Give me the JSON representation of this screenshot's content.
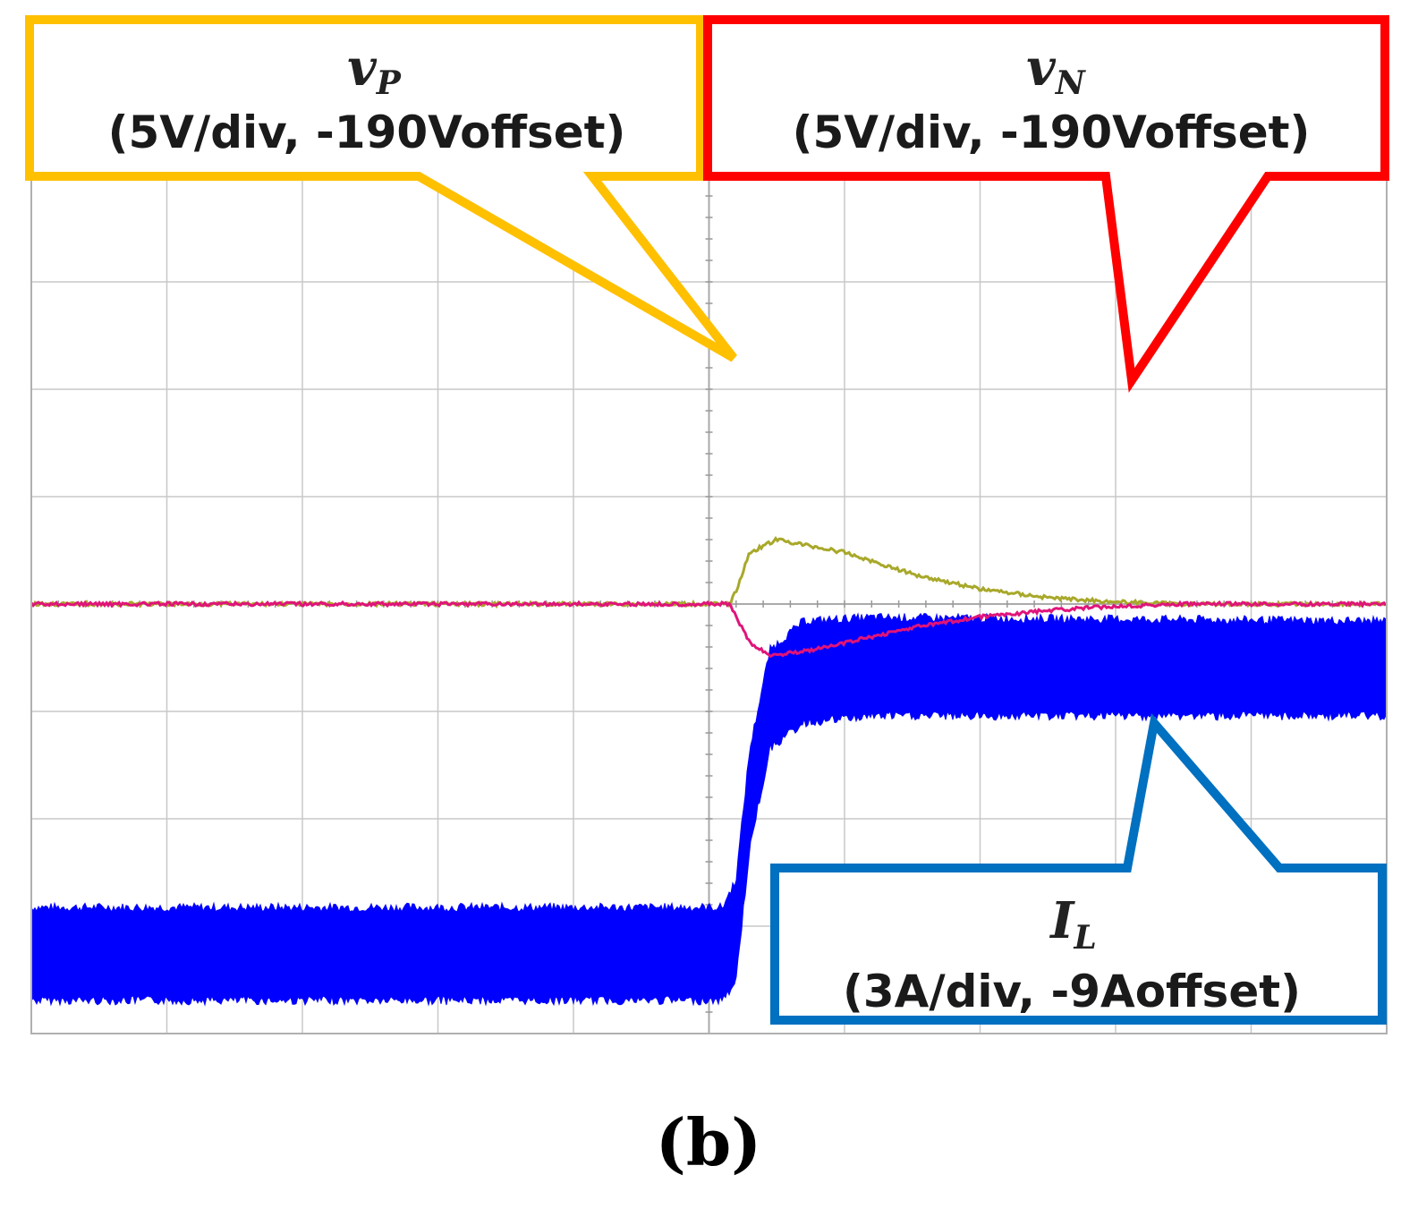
{
  "panel_label": "(b)",
  "callouts": {
    "vp": {
      "symbol": "v",
      "subscript": "P",
      "scale_text": "(5V/div, -190Voffset)",
      "color": "#FFC000"
    },
    "vn": {
      "symbol": "v",
      "subscript": "N",
      "scale_text": "(5V/div, -190Voffset)",
      "color": "#FF0000"
    },
    "il": {
      "symbol": "I",
      "subscript": "L",
      "scale_text": "(3A/div, -9Aoffset)",
      "color": "#0070C0"
    }
  },
  "chart_data": {
    "type": "line",
    "title": "",
    "xlabel": "",
    "ylabel": "",
    "grid": true,
    "x_divisions": 10,
    "y_divisions": 8,
    "grid_color": "#c8c8c8",
    "background": "#ffffff",
    "series": [
      {
        "name": "vP",
        "color": "#A8A82A",
        "units": "V",
        "volts_per_div": 5,
        "offset": -190,
        "points": [
          [
            0.0,
            190.0
          ],
          [
            5.15,
            190.0
          ],
          [
            5.2,
            190.6
          ],
          [
            5.3,
            192.4
          ],
          [
            5.5,
            193.0
          ],
          [
            6.0,
            192.4
          ],
          [
            6.5,
            191.4
          ],
          [
            7.0,
            190.7
          ],
          [
            7.5,
            190.3
          ],
          [
            8.0,
            190.1
          ],
          [
            8.5,
            190.0
          ],
          [
            10.0,
            190.0
          ]
        ]
      },
      {
        "name": "vN",
        "color": "#E0147A",
        "units": "V",
        "volts_per_div": 5,
        "offset": -190,
        "points": [
          [
            0.0,
            190.0
          ],
          [
            5.15,
            190.0
          ],
          [
            5.3,
            188.2
          ],
          [
            5.45,
            187.6
          ],
          [
            5.8,
            187.9
          ],
          [
            6.5,
            188.9
          ],
          [
            7.0,
            189.4
          ],
          [
            7.5,
            189.7
          ],
          [
            8.0,
            189.9
          ],
          [
            8.5,
            190.0
          ],
          [
            10.0,
            190.0
          ]
        ]
      },
      {
        "name": "IL",
        "color": "#0000FF",
        "units": "A",
        "amps_per_div": 3,
        "offset": -9,
        "band": true,
        "points": [
          [
            0.0,
            1.05,
            3.4
          ],
          [
            5.1,
            1.05,
            3.4
          ],
          [
            5.2,
            1.6,
            4.2
          ],
          [
            5.3,
            5.3,
            7.8
          ],
          [
            5.45,
            8.1,
            10.6
          ],
          [
            5.7,
            8.8,
            11.4
          ],
          [
            6.2,
            9.0,
            11.5
          ],
          [
            10.0,
            9.0,
            11.4
          ]
        ]
      }
    ]
  }
}
